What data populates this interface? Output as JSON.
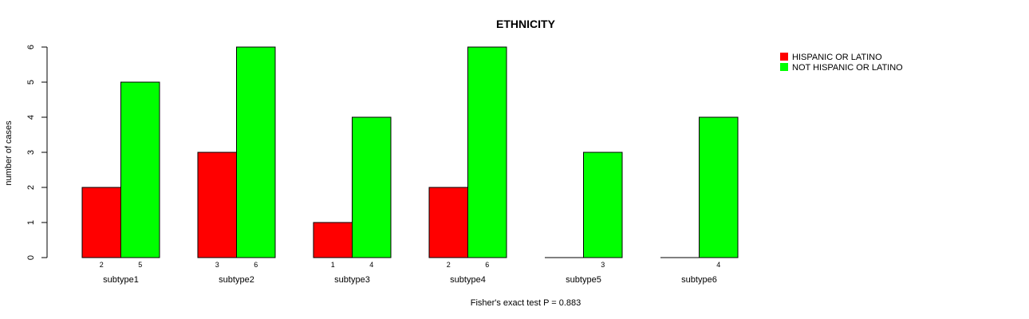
{
  "chart_data": {
    "type": "bar",
    "title": "ETHNICITY",
    "ylabel": "number of cases",
    "xlabel": "",
    "footnote": "Fisher's exact test P = 0.883",
    "ylim": [
      0,
      6
    ],
    "yticks": [
      "0",
      "1",
      "2",
      "3",
      "4",
      "5",
      "6"
    ],
    "categories": [
      "subtype1",
      "subtype2",
      "subtype3",
      "subtype4",
      "subtype5",
      "subtype6"
    ],
    "series": [
      {
        "name": "HISPANIC OR LATINO",
        "color": "#ff0000",
        "values": [
          2,
          3,
          1,
          2,
          0,
          0
        ],
        "labels": [
          "2",
          "3",
          "1",
          "2",
          "",
          ""
        ]
      },
      {
        "name": "NOT HISPANIC OR LATINO",
        "color": "#00ff00",
        "values": [
          5,
          6,
          4,
          6,
          3,
          4
        ],
        "labels": [
          "5",
          "6",
          "4",
          "6",
          "3",
          "4"
        ]
      }
    ],
    "legend_position": "top-right"
  }
}
